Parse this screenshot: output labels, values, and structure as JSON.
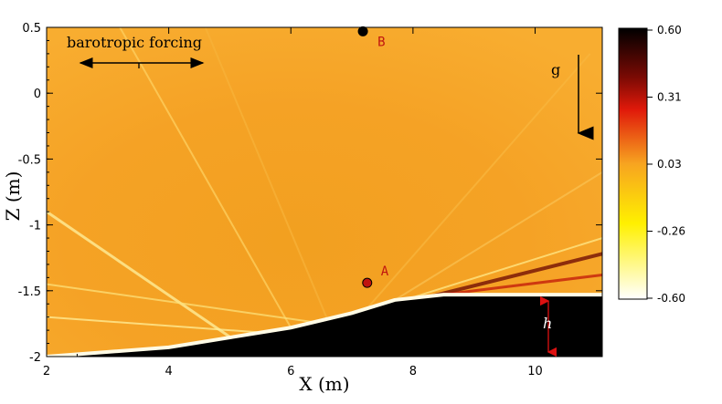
{
  "chart_data": {
    "type": "heatmap",
    "title": "",
    "xlabel": "X (m)",
    "ylabel": "Z (m)",
    "xlim": [
      2,
      11.1
    ],
    "ylim": [
      -2,
      0.5
    ],
    "x_ticks": [
      2,
      4,
      6,
      8,
      10
    ],
    "y_ticks": [
      0.5,
      0,
      -0.5,
      -1,
      -1.5,
      -2
    ],
    "x_tick_labels": [
      "2",
      "4",
      "6",
      "8",
      "10"
    ],
    "y_tick_labels": [
      "0.5",
      "0",
      "-0.5",
      "-1",
      "-1.5",
      "-2"
    ],
    "colorbar": {
      "min": -0.6,
      "max": 0.6,
      "tick_labels": [
        "0.60",
        "0.31",
        "0.03",
        "-0.26",
        "-0.60"
      ],
      "colors": [
        "#000000",
        "#e0190a",
        "#f7a420",
        "#fff000",
        "#ffffff"
      ]
    },
    "topography": [
      [
        2,
        -2
      ],
      [
        4,
        -1.93
      ],
      [
        6,
        -1.78
      ],
      [
        7,
        -1.67
      ],
      [
        7.7,
        -1.57
      ],
      [
        8.5,
        -1.53
      ],
      [
        11.1,
        -1.53
      ]
    ],
    "points": [
      {
        "label": "A",
        "x": 7.25,
        "z": -1.44
      },
      {
        "label": "B",
        "x": 7.18,
        "z": 0.47
      }
    ],
    "annotations": {
      "forcing": "barotropic forcing",
      "gravity": "g",
      "depth": "h"
    }
  }
}
